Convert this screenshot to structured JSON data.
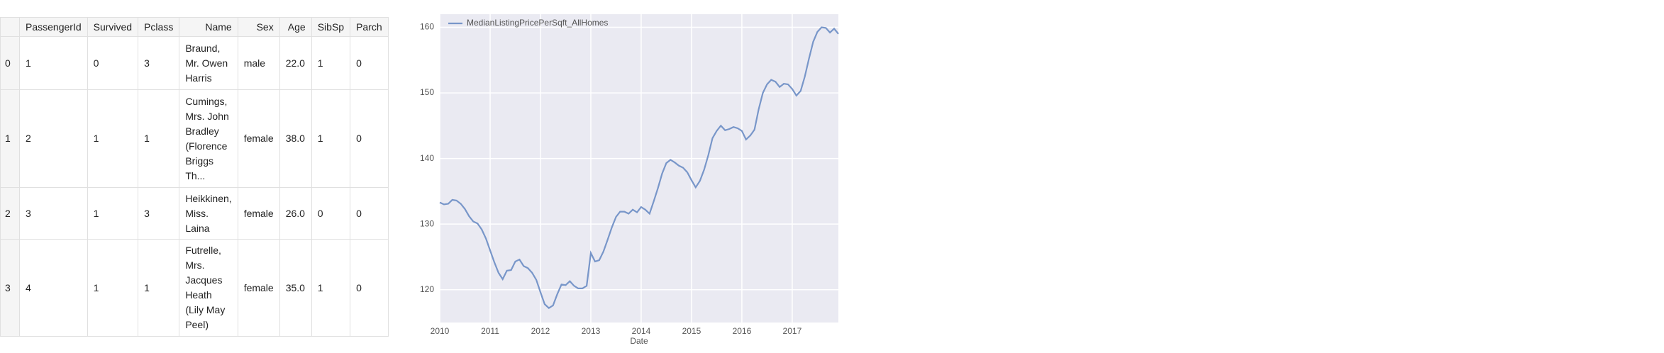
{
  "table": {
    "columns": [
      "PassengerId",
      "Survived",
      "Pclass",
      "Name",
      "Sex",
      "Age",
      "SibSp",
      "Parch"
    ],
    "rows": [
      [
        "0",
        "1",
        "0",
        "3",
        "Braund, Mr. Owen Harris",
        "male",
        "22.0",
        "1",
        "0"
      ],
      [
        "1",
        "2",
        "1",
        "1",
        "Cumings, Mrs. John Bradley (Florence Briggs Th...",
        "female",
        "38.0",
        "1",
        "0"
      ],
      [
        "2",
        "3",
        "1",
        "3",
        "Heikkinen, Miss. Laina",
        "female",
        "26.0",
        "0",
        "0"
      ],
      [
        "3",
        "4",
        "1",
        "1",
        "Futrelle, Mrs. Jacques Heath (Lily May Peel)",
        "female",
        "35.0",
        "1",
        "0"
      ]
    ]
  },
  "chart_data": {
    "type": "line",
    "xlabel": "Date",
    "grid": true,
    "legend": "upper-left",
    "xlim": [
      2010,
      2017.917
    ],
    "xticks": [
      2010,
      2011,
      2012,
      2013,
      2014,
      2015,
      2016,
      2017
    ],
    "ylim": [
      115,
      162
    ],
    "yticks": [
      120,
      130,
      140,
      150,
      160
    ],
    "x": [
      2010,
      2010.083,
      2010.167,
      2010.25,
      2010.333,
      2010.417,
      2010.5,
      2010.583,
      2010.667,
      2010.75,
      2010.833,
      2010.917,
      2011,
      2011.083,
      2011.167,
      2011.25,
      2011.333,
      2011.417,
      2011.5,
      2011.583,
      2011.667,
      2011.75,
      2011.833,
      2011.917,
      2012,
      2012.083,
      2012.167,
      2012.25,
      2012.333,
      2012.417,
      2012.5,
      2012.583,
      2012.667,
      2012.75,
      2012.833,
      2012.917,
      2013,
      2013.083,
      2013.167,
      2013.25,
      2013.333,
      2013.417,
      2013.5,
      2013.583,
      2013.667,
      2013.75,
      2013.833,
      2013.917,
      2014,
      2014.083,
      2014.167,
      2014.25,
      2014.333,
      2014.417,
      2014.5,
      2014.583,
      2014.667,
      2014.75,
      2014.833,
      2014.917,
      2015,
      2015.083,
      2015.167,
      2015.25,
      2015.333,
      2015.417,
      2015.5,
      2015.583,
      2015.667,
      2015.75,
      2015.833,
      2015.917,
      2016,
      2016.083,
      2016.167,
      2016.25,
      2016.333,
      2016.417,
      2016.5,
      2016.583,
      2016.667,
      2016.75,
      2016.833,
      2016.917,
      2017,
      2017.083,
      2017.167,
      2017.25,
      2017.333,
      2017.417,
      2017.5,
      2017.583,
      2017.667,
      2017.75,
      2017.833,
      2017.917
    ],
    "series": [
      {
        "name": "MedianListingPricePerSqft_AllHomes",
        "color": "#7896c9",
        "values": [
          133.3,
          133.0,
          133.1,
          133.7,
          133.6,
          133.1,
          132.3,
          131.2,
          130.4,
          130.1,
          129.2,
          127.8,
          126.0,
          124.2,
          122.6,
          121.6,
          122.9,
          123.0,
          124.3,
          124.6,
          123.6,
          123.3,
          122.6,
          121.5,
          119.6,
          117.8,
          117.2,
          117.6,
          119.3,
          120.8,
          120.7,
          121.3,
          120.6,
          120.2,
          120.2,
          120.6,
          125.6,
          124.3,
          124.5,
          125.8,
          127.6,
          129.5,
          131.1,
          131.9,
          131.9,
          131.6,
          132.2,
          131.8,
          132.6,
          132.2,
          131.6,
          133.5,
          135.5,
          137.7,
          139.3,
          139.8,
          139.4,
          138.9,
          138.6,
          137.9,
          136.7,
          135.6,
          136.6,
          138.3,
          140.5,
          143.1,
          144.2,
          145.0,
          144.3,
          144.5,
          144.8,
          144.6,
          144.2,
          142.9,
          143.5,
          144.4,
          147.5,
          150.0,
          151.3,
          152.0,
          151.7,
          150.9,
          151.4,
          151.3,
          150.6,
          149.6,
          150.3,
          152.5,
          155.2,
          157.8,
          159.3,
          160.0,
          159.9,
          159.2,
          159.8,
          159.0
        ]
      }
    ]
  }
}
